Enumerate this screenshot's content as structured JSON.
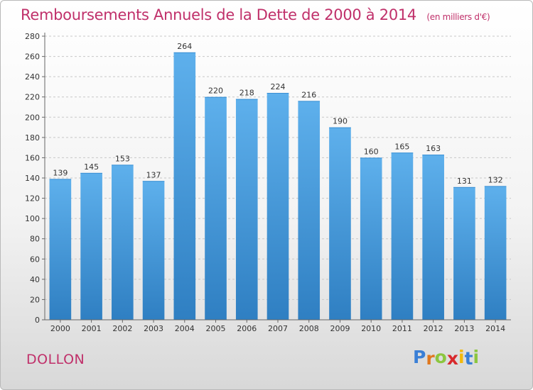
{
  "header": {
    "title": "Remboursements Annuels de la Dette de 2000 à 2014",
    "subtitle": "(en milliers d'€)"
  },
  "footer": {
    "place": "DOLLON",
    "logo_letters": [
      "P",
      "r",
      "o",
      "x",
      "i",
      "t",
      "i"
    ]
  },
  "colors": {
    "title": "#c0306a",
    "bar_top": "#5eb0ec",
    "bar_bottom": "#2f7fc2",
    "logo": [
      "#3a7fd6",
      "#e0781e",
      "#8cc63f",
      "#d8292c",
      "#f2b90c",
      "#3a7fd6",
      "#8cc63f"
    ]
  },
  "chart_data": {
    "type": "bar",
    "title": "Remboursements Annuels de la Dette de 2000 à 2014",
    "subtitle": "(en milliers d'€)",
    "categories": [
      "2000",
      "2001",
      "2002",
      "2003",
      "2004",
      "2005",
      "2006",
      "2007",
      "2008",
      "2009",
      "2010",
      "2011",
      "2012",
      "2013",
      "2014"
    ],
    "values": [
      139,
      145,
      153,
      137,
      264,
      220,
      218,
      224,
      216,
      190,
      160,
      165,
      163,
      131,
      132
    ],
    "ylim": [
      0,
      280
    ],
    "yticks": [
      0,
      20,
      40,
      60,
      80,
      100,
      120,
      140,
      160,
      180,
      200,
      220,
      240,
      260,
      280
    ],
    "grid": true,
    "legend": "none"
  }
}
